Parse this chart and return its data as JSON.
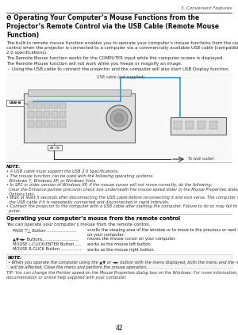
{
  "page_num": "42",
  "chapter": "3. Convenient Features",
  "title": "❶ Operating Your Computer’s Mouse Functions from the\nProjector’s Remote Control via the USB Cable (Remote Mouse\nFunction)",
  "intro_text": "The built-in remote mouse function enables you to operate your computer’s mouse functions from the supplied remote\ncontrol when the projector is connected to a computer via a commercially available USB cable (compatible with USB\n2.0 specifications).",
  "body_text1": "The Remote Mouse function works for the COMPUTER input while the computer screen is displayed.",
  "body_text2": "The Remote Mouse function will not work while you freeze or magnify an image.",
  "bullet_char": "-",
  "bullet_text": "Using the USB cable to connect the projector and the computer will also start USB Display function.",
  "diagram_label_usb": "USB cable (not supplied)",
  "diagram_label_usb_b": "USB-B",
  "diagram_label_ac": "AC IN",
  "diagram_label_outlet": "To wall outlet",
  "note_title": "NOTE:",
  "note_bullets": [
    "• A USB cable must support the USB 2.0 Specifications.",
    "• The mouse function can be used with the following operating systems:\n  Windows 7, Windows XP, or Windows Vista",
    "• In SP2 or older version of Windows XP, if the mouse cursor will not move correctly, do the following:\n  Clear the Enhance pointer precision check box underneath the mouse speed slider in the Mouse Properties dialog box (Pointer\n  Options tab).",
    "• Wait at least 5 seconds after disconnecting the USB cable before reconnecting it and vice versa. The computer may not identify\n  the USB cable if it is repeatedly connected and disconnected in rapid intervals.",
    "• Connect the projector to the computer with a USB cable after starting the computer. Failure to do so may fail to start the com-\n  puter."
  ],
  "section_title": "Operating your computer’s mouse from the remote control",
  "section_text": "You can operate your computer’s mouse from the remote control.",
  "table_rows": [
    [
      "PAGE ▽△ Button .......................",
      "scrolls the viewing area of the window or to move to the previous or next slide in PowerPoint\non your computer."
    ],
    [
      "▲▼◄► Buttons............................",
      "moves the mouse cursor on your computer."
    ],
    [
      "MOUSE L-CLICK/ENTER Button .....",
      "works as the mouse left button."
    ],
    [
      "MOUSE R-CLICK Button .................",
      "works as the mouse right button."
    ]
  ],
  "note2_title": "NOTE:",
  "note2_text": "• When you operate the computer using the ▲▼ or ◄► button with the menu displayed, both the menu and the mouse pointer\n  will be affected. Close the menu and perform the mouse operation.",
  "tip_text": "TIP: You can change the Pointer speed on the Mouse Properties dialog box on the Windows. For more information, see the user\ndocumentation or online help supplied with your computer.",
  "bg_color": "#ffffff",
  "line_color": "#888888",
  "note_bg_color": "#f5f5f5",
  "note_border_color": "#cccccc",
  "blue_color": "#3399cc",
  "dark_text": "#111111",
  "body_text_color": "#222222",
  "italic_text_color": "#333333"
}
